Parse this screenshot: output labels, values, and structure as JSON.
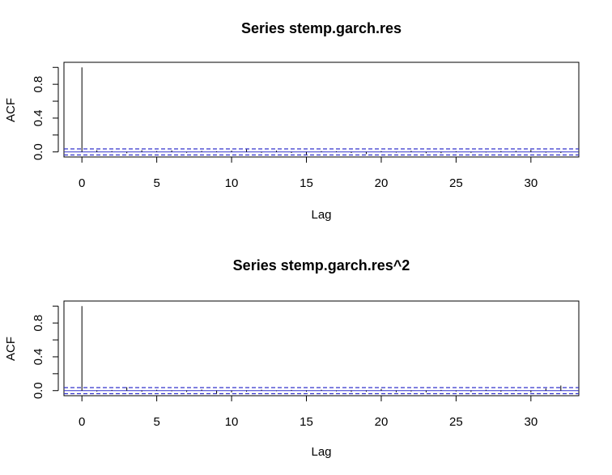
{
  "chart_data": [
    {
      "type": "bar",
      "title": "Series  stemp.garch.res",
      "xlabel": "Lag",
      "ylabel": "ACF",
      "xlim": [
        -1.2,
        33.2
      ],
      "ylim": [
        -0.06,
        1.06
      ],
      "xticks": [
        "0",
        "5",
        "10",
        "15",
        "20",
        "25",
        "30"
      ],
      "xtick_values": [
        0,
        5,
        10,
        15,
        20,
        25,
        30
      ],
      "yticks": [
        "0.0",
        "0.4",
        "0.8"
      ],
      "ytick_values": [
        0.0,
        0.4,
        0.8
      ],
      "ci_bound": 0.036,
      "lags": [
        0,
        1,
        2,
        3,
        4,
        5,
        6,
        7,
        8,
        9,
        10,
        11,
        12,
        13,
        14,
        15,
        16,
        17,
        18,
        19,
        20,
        21,
        22,
        23,
        24,
        25,
        26,
        27,
        28,
        29,
        30,
        31,
        32
      ],
      "values": [
        1.0,
        0.02,
        0.01,
        -0.015,
        0.02,
        0.01,
        0.018,
        -0.01,
        0.012,
        0.008,
        0.015,
        0.03,
        -0.01,
        0.015,
        -0.012,
        -0.03,
        0.01,
        0.008,
        -0.012,
        -0.025,
        0.01,
        -0.008,
        0.012,
        -0.015,
        -0.015,
        0.008,
        -0.01,
        -0.006,
        0.01,
        0.012,
        0.025,
        -0.008,
        -0.012
      ],
      "grid": false,
      "colors": {
        "bars": "#000000",
        "ci_lines": "#3333cc",
        "zero_line": "#3333cc",
        "frame": "#000000"
      }
    },
    {
      "type": "bar",
      "title": "Series  stemp.garch.res^2",
      "xlabel": "Lag",
      "ylabel": "ACF",
      "xlim": [
        -1.2,
        33.2
      ],
      "ylim": [
        -0.06,
        1.06
      ],
      "xticks": [
        "0",
        "5",
        "10",
        "15",
        "20",
        "25",
        "30"
      ],
      "xtick_values": [
        0,
        5,
        10,
        15,
        20,
        25,
        30
      ],
      "yticks": [
        "0.0",
        "0.4",
        "0.8"
      ],
      "ytick_values": [
        0.0,
        0.4,
        0.8
      ],
      "ci_bound": 0.036,
      "lags": [
        0,
        1,
        2,
        3,
        4,
        5,
        6,
        7,
        8,
        9,
        10,
        11,
        12,
        13,
        14,
        15,
        16,
        17,
        18,
        19,
        20,
        21,
        22,
        23,
        24,
        25,
        26,
        27,
        28,
        29,
        30,
        31,
        32
      ],
      "values": [
        1.0,
        -0.01,
        0.008,
        0.04,
        -0.012,
        0.01,
        -0.008,
        -0.015,
        0.012,
        -0.035,
        -0.02,
        -0.012,
        0.01,
        -0.006,
        0.008,
        -0.012,
        0.01,
        -0.008,
        -0.015,
        -0.012,
        0.02,
        -0.018,
        -0.01,
        -0.02,
        0.008,
        -0.01,
        -0.015,
        0.01,
        -0.012,
        0.008,
        -0.02,
        0.025,
        0.06
      ],
      "grid": false,
      "colors": {
        "bars": "#000000",
        "ci_lines": "#3333cc",
        "zero_line": "#3333cc",
        "frame": "#000000"
      }
    }
  ]
}
